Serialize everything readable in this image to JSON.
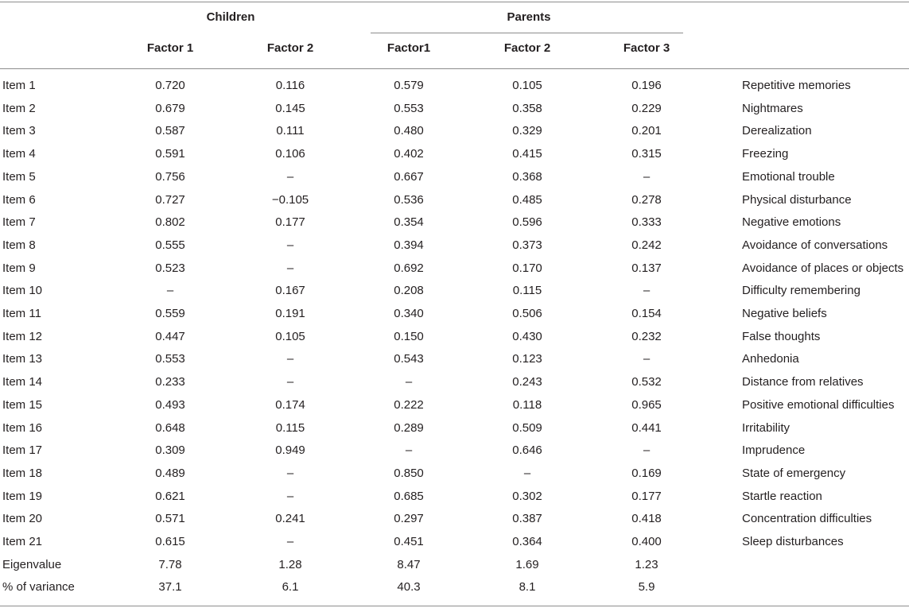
{
  "header": {
    "group_children": "Children",
    "group_parents": "Parents",
    "columns": [
      "Factor 1",
      "Factor 2",
      "Factor1",
      "Factor 2",
      "Factor 3"
    ]
  },
  "rows": [
    {
      "item": "Item 1",
      "values": [
        "0.720",
        "0.116",
        "0.579",
        "0.105",
        "0.196"
      ],
      "description": "Repetitive memories"
    },
    {
      "item": "Item 2",
      "values": [
        "0.679",
        "0.145",
        "0.553",
        "0.358",
        "0.229"
      ],
      "description": "Nightmares"
    },
    {
      "item": "Item 3",
      "values": [
        "0.587",
        "0.111",
        "0.480",
        "0.329",
        "0.201"
      ],
      "description": "Derealization"
    },
    {
      "item": "Item 4",
      "values": [
        "0.591",
        "0.106",
        "0.402",
        "0.415",
        "0.315"
      ],
      "description": "Freezing"
    },
    {
      "item": "Item 5",
      "values": [
        "0.756",
        "–",
        "0.667",
        "0.368",
        "–"
      ],
      "description": "Emotional trouble"
    },
    {
      "item": "Item 6",
      "values": [
        "0.727",
        "−0.105",
        "0.536",
        "0.485",
        "0.278"
      ],
      "description": "Physical disturbance"
    },
    {
      "item": "Item 7",
      "values": [
        "0.802",
        "0.177",
        "0.354",
        "0.596",
        "0.333"
      ],
      "description": "Negative emotions"
    },
    {
      "item": "Item 8",
      "values": [
        "0.555",
        "–",
        "0.394",
        "0.373",
        "0.242"
      ],
      "description": "Avoidance of conversations"
    },
    {
      "item": "Item 9",
      "values": [
        "0.523",
        "–",
        "0.692",
        "0.170",
        "0.137"
      ],
      "description": "Avoidance of places or objects"
    },
    {
      "item": "Item 10",
      "values": [
        "–",
        "0.167",
        "0.208",
        "0.115",
        "–"
      ],
      "description": "Difficulty remembering"
    },
    {
      "item": "Item 11",
      "values": [
        "0.559",
        "0.191",
        "0.340",
        "0.506",
        "0.154"
      ],
      "description": "Negative beliefs"
    },
    {
      "item": "Item 12",
      "values": [
        "0.447",
        "0.105",
        "0.150",
        "0.430",
        "0.232"
      ],
      "description": "False thoughts"
    },
    {
      "item": "Item 13",
      "values": [
        "0.553",
        "–",
        "0.543",
        "0.123",
        "–"
      ],
      "description": "Anhedonia"
    },
    {
      "item": "Item 14",
      "values": [
        "0.233",
        "–",
        "–",
        "0.243",
        "0.532"
      ],
      "description": "Distance from relatives"
    },
    {
      "item": "Item 15",
      "values": [
        "0.493",
        "0.174",
        "0.222",
        "0.118",
        "0.965"
      ],
      "description": "Positive emotional difficulties"
    },
    {
      "item": "Item 16",
      "values": [
        "0.648",
        "0.115",
        "0.289",
        "0.509",
        "0.441"
      ],
      "description": "Irritability"
    },
    {
      "item": "Item 17",
      "values": [
        "0.309",
        "0.949",
        "–",
        "0.646",
        "–"
      ],
      "description": "Imprudence"
    },
    {
      "item": "Item 18",
      "values": [
        "0.489",
        "–",
        "0.850",
        "–",
        "0.169"
      ],
      "description": "State of emergency"
    },
    {
      "item": "Item 19",
      "values": [
        "0.621",
        "–",
        "0.685",
        "0.302",
        "0.177"
      ],
      "description": "Startle reaction"
    },
    {
      "item": "Item 20",
      "values": [
        "0.571",
        "0.241",
        "0.297",
        "0.387",
        "0.418"
      ],
      "description": "Concentration difficulties"
    },
    {
      "item": "Item 21",
      "values": [
        "0.615",
        "–",
        "0.451",
        "0.364",
        "0.400"
      ],
      "description": "Sleep disturbances"
    },
    {
      "item": "Eigenvalue",
      "values": [
        "7.78",
        "1.28",
        "8.47",
        "1.69",
        "1.23"
      ],
      "description": ""
    },
    {
      "item": "% of variance",
      "values": [
        "37.1",
        "6.1",
        "40.3",
        "8.1",
        "5.9"
      ],
      "description": ""
    }
  ]
}
